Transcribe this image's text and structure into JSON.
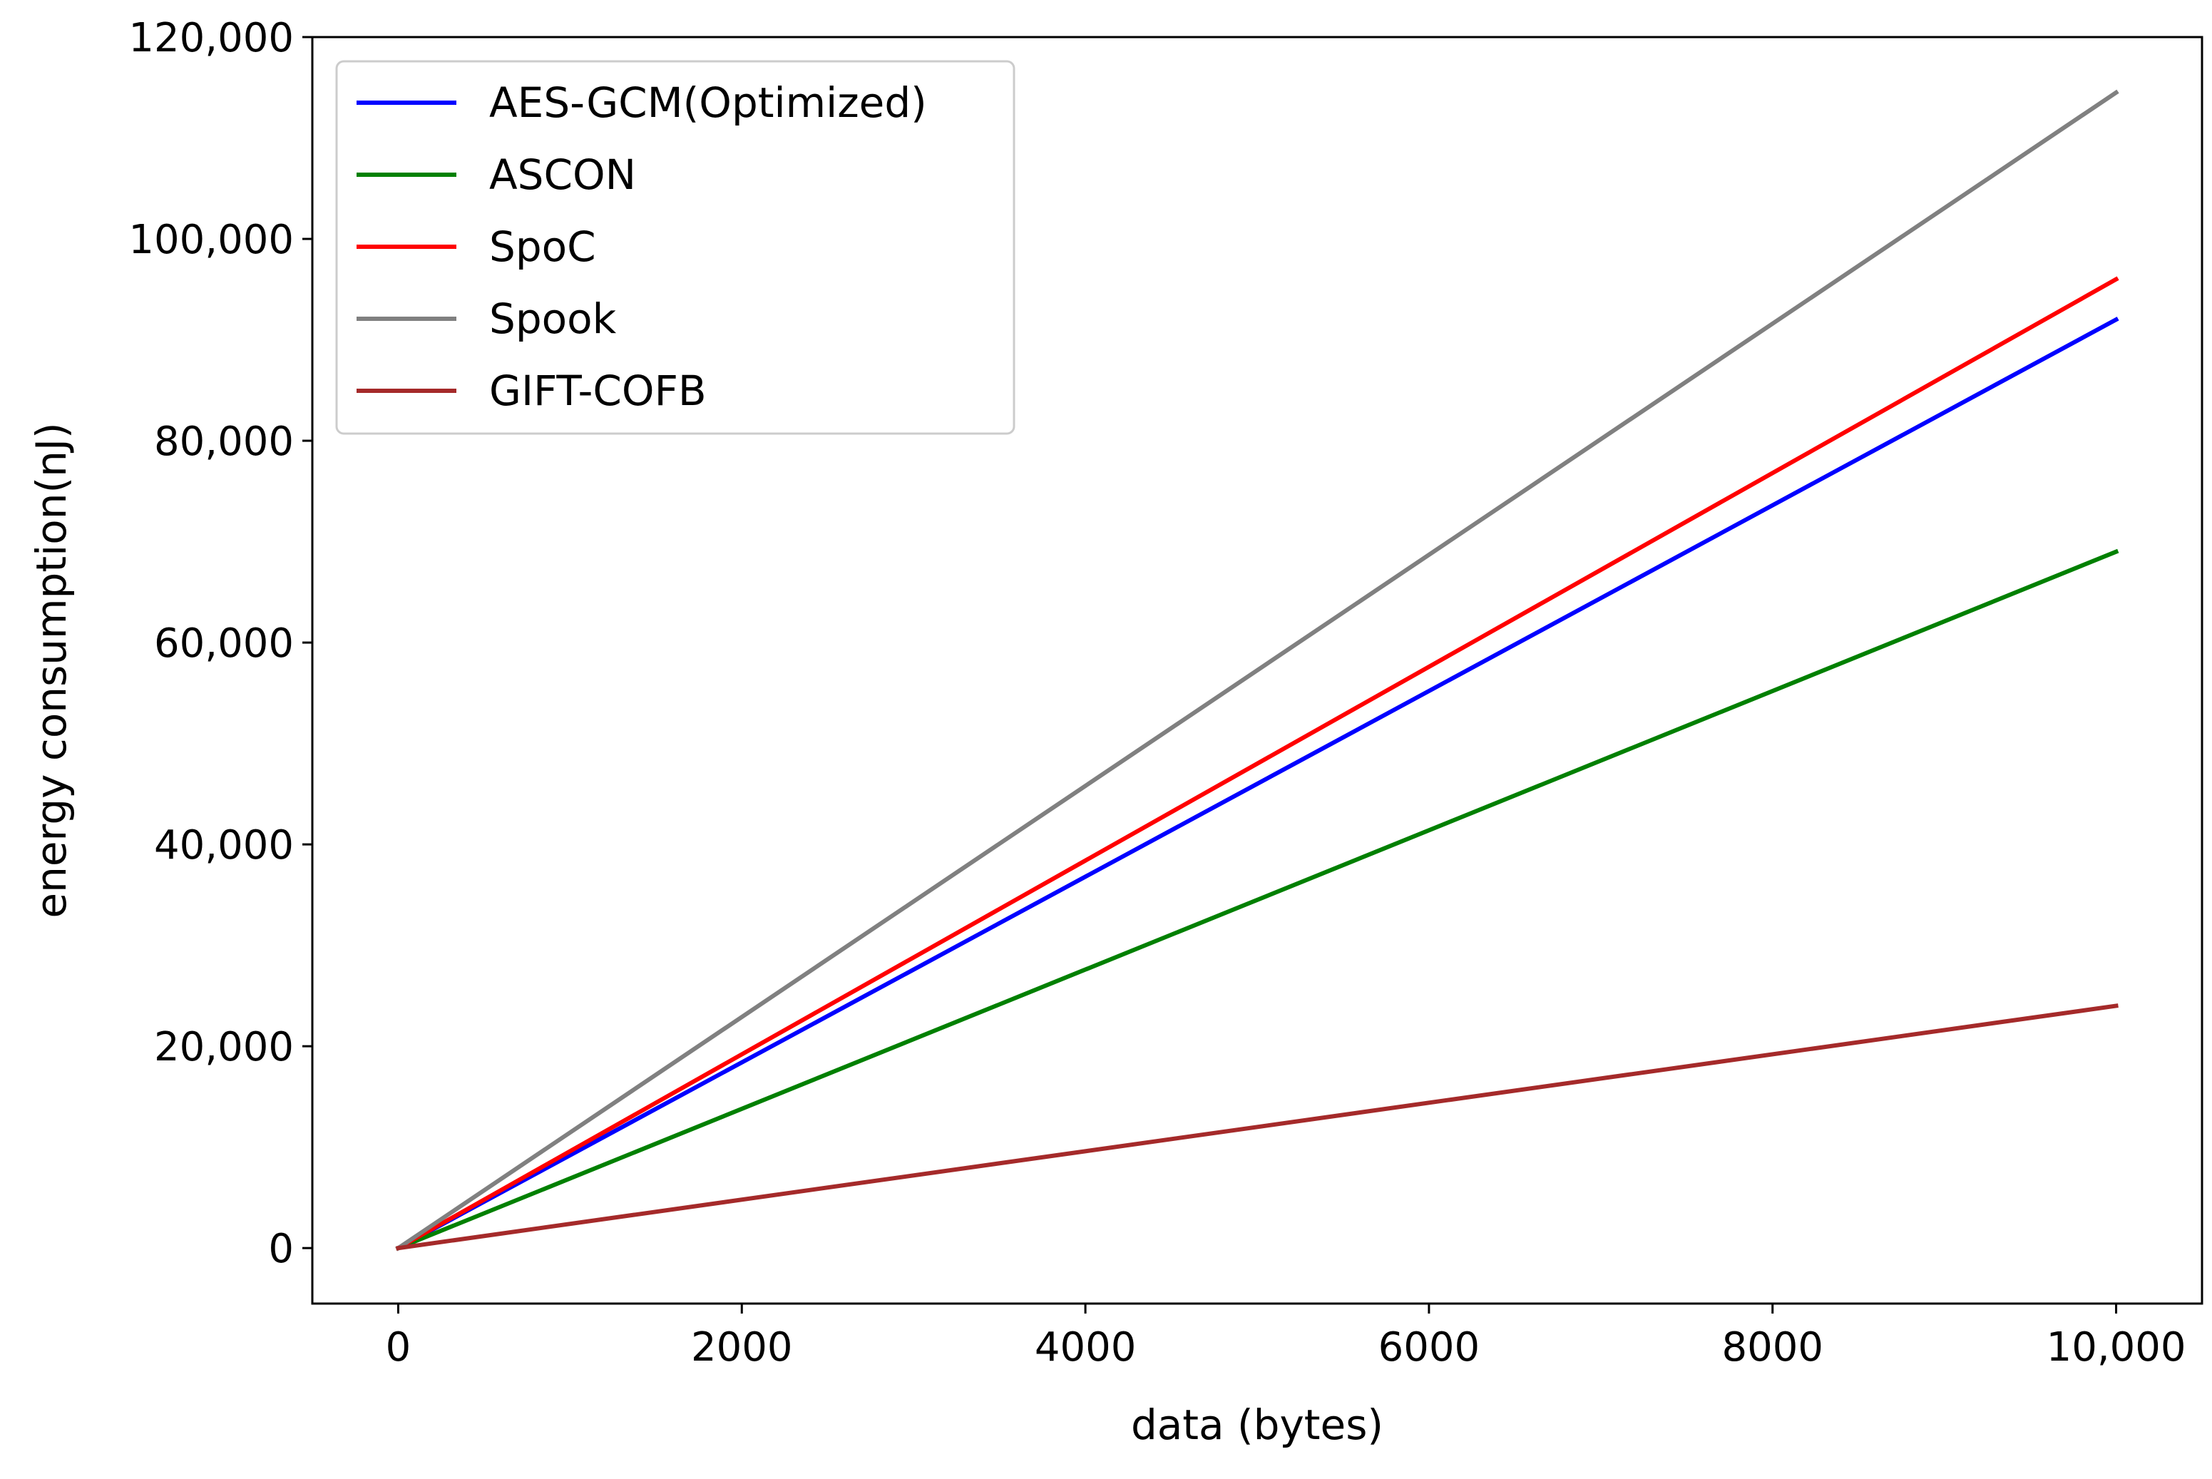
{
  "chart_data": {
    "type": "line",
    "title": "",
    "xlabel": "data (bytes)",
    "ylabel": "energy consumption(nJ)",
    "xlim": [
      -500,
      10500
    ],
    "ylim": [
      -5500,
      120000
    ],
    "xticks": [
      0,
      2000,
      4000,
      6000,
      8000,
      10000
    ],
    "xtick_labels": [
      "0",
      "2000",
      "4000",
      "6000",
      "8000",
      "10,000"
    ],
    "yticks": [
      0,
      20000,
      40000,
      60000,
      80000,
      100000,
      120000
    ],
    "ytick_labels": [
      "0",
      "20,000",
      "40,000",
      "60,000",
      "80,000",
      "100,000",
      "120,000"
    ],
    "grid": false,
    "legend_position": "top-left",
    "series": [
      {
        "name": "AES-GCM(Optimized)",
        "color": "#0000ff",
        "x": [
          0,
          10000
        ],
        "y": [
          0,
          92000
        ]
      },
      {
        "name": "ASCON",
        "color": "#008000",
        "x": [
          0,
          10000
        ],
        "y": [
          0,
          69000
        ]
      },
      {
        "name": "SpoC",
        "color": "#ff0000",
        "x": [
          0,
          10000
        ],
        "y": [
          0,
          96000
        ]
      },
      {
        "name": "Spook",
        "color": "#808080",
        "x": [
          0,
          10000
        ],
        "y": [
          0,
          114500
        ]
      },
      {
        "name": "GIFT-COFB",
        "color": "#a52a2a",
        "x": [
          0,
          10000
        ],
        "y": [
          0,
          24000
        ]
      }
    ]
  }
}
